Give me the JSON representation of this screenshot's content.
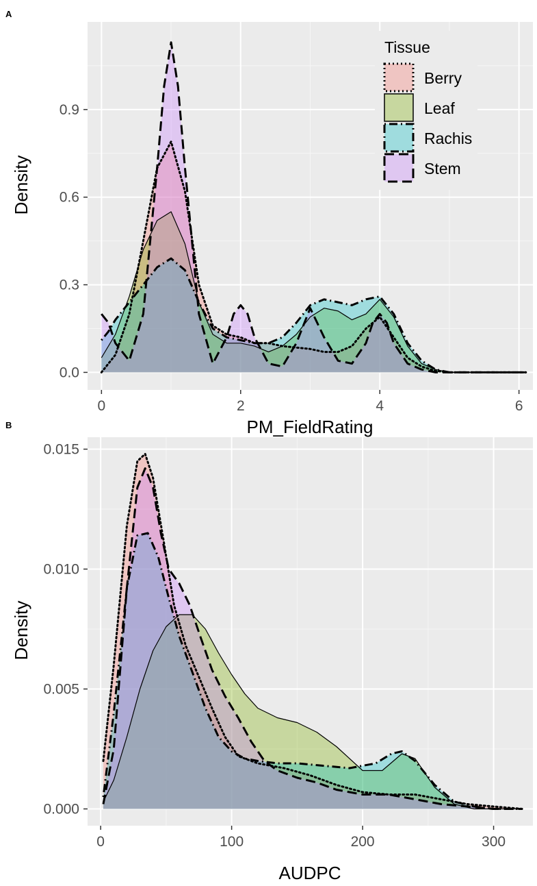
{
  "chart_data": [
    {
      "panel": "A",
      "type": "area",
      "xlabel": "PM_FieldRating",
      "ylabel": "Density",
      "xlim": [
        -0.2,
        6.2
      ],
      "ylim": [
        -0.06,
        1.2
      ],
      "xticks": [
        0,
        2,
        4,
        6
      ],
      "xtick_labels": [
        "0",
        "2",
        "4",
        "6"
      ],
      "yticks": [
        0,
        0.3,
        0.6,
        0.9
      ],
      "ytick_labels": [
        "0.0",
        "0.3",
        "0.6",
        "0.9"
      ],
      "grid": true,
      "legend": {
        "title": "Tissue",
        "position": "top-right",
        "entries": [
          "Berry",
          "Leaf",
          "Rachis",
          "Stem"
        ]
      },
      "series": [
        {
          "name": "Berry",
          "color": "#F8766D",
          "line": "dotted",
          "x": [
            0,
            0.2,
            0.4,
            0.6,
            0.8,
            1.0,
            1.2,
            1.4,
            1.6,
            1.8,
            2.0,
            2.2,
            2.4,
            2.6,
            2.8,
            3.0,
            3.2,
            3.4,
            3.6,
            3.8,
            4.0,
            4.2,
            4.4,
            4.6,
            4.8,
            5.0,
            5.5,
            6.0,
            6.1
          ],
          "y": [
            0.0,
            0.06,
            0.2,
            0.45,
            0.7,
            0.79,
            0.62,
            0.3,
            0.16,
            0.13,
            0.12,
            0.1,
            0.1,
            0.09,
            0.085,
            0.08,
            0.07,
            0.07,
            0.09,
            0.15,
            0.19,
            0.12,
            0.05,
            0.02,
            0.005,
            0.0,
            0.0,
            0.0,
            0.0
          ]
        },
        {
          "name": "Leaf",
          "color": "#7CAE00",
          "line": "solid",
          "x": [
            0,
            0.2,
            0.4,
            0.6,
            0.8,
            1.0,
            1.2,
            1.4,
            1.6,
            1.8,
            2.0,
            2.2,
            2.4,
            2.6,
            2.8,
            3.0,
            3.2,
            3.4,
            3.6,
            3.8,
            4.0,
            4.2,
            4.4,
            4.6,
            4.8,
            5.0,
            5.5,
            6.0,
            6.1
          ],
          "y": [
            0.05,
            0.13,
            0.26,
            0.42,
            0.52,
            0.55,
            0.44,
            0.24,
            0.13,
            0.1,
            0.1,
            0.09,
            0.07,
            0.09,
            0.13,
            0.19,
            0.22,
            0.21,
            0.18,
            0.2,
            0.25,
            0.19,
            0.09,
            0.03,
            0.01,
            0.0,
            0.0,
            0.0,
            0.0
          ]
        },
        {
          "name": "Rachis",
          "color": "#00BFC4",
          "line": "dotdash",
          "x": [
            0,
            0.1,
            0.2,
            0.4,
            0.6,
            0.8,
            1.0,
            1.2,
            1.4,
            1.6,
            1.8,
            2.0,
            2.2,
            2.4,
            2.6,
            2.8,
            3.0,
            3.2,
            3.4,
            3.6,
            3.8,
            4.0,
            4.2,
            4.4,
            4.6,
            4.8,
            5.0,
            5.5,
            6.0,
            6.1
          ],
          "y": [
            0.11,
            0.14,
            0.18,
            0.24,
            0.3,
            0.36,
            0.39,
            0.35,
            0.24,
            0.15,
            0.12,
            0.11,
            0.1,
            0.1,
            0.12,
            0.17,
            0.23,
            0.25,
            0.24,
            0.23,
            0.25,
            0.26,
            0.2,
            0.1,
            0.04,
            0.01,
            0.0,
            0.0,
            0.0,
            0.0
          ]
        },
        {
          "name": "Stem",
          "color": "#C77CFF",
          "line": "dashed",
          "x": [
            0,
            0.1,
            0.2,
            0.4,
            0.6,
            0.8,
            0.9,
            1.0,
            1.1,
            1.2,
            1.4,
            1.6,
            1.8,
            1.9,
            2.0,
            2.1,
            2.2,
            2.4,
            2.6,
            2.8,
            3.0,
            3.2,
            3.4,
            3.6,
            3.8,
            3.9,
            4.0,
            4.1,
            4.2,
            4.4,
            4.6,
            4.8,
            5.0,
            5.5,
            6.0,
            6.1
          ],
          "y": [
            0.2,
            0.17,
            0.1,
            0.04,
            0.2,
            0.7,
            0.98,
            1.13,
            0.98,
            0.7,
            0.2,
            0.03,
            0.12,
            0.2,
            0.23,
            0.2,
            0.12,
            0.03,
            0.02,
            0.1,
            0.22,
            0.12,
            0.04,
            0.03,
            0.1,
            0.17,
            0.2,
            0.17,
            0.1,
            0.03,
            0.01,
            0.0,
            0.0,
            0.0,
            0.0,
            0.0
          ]
        }
      ]
    },
    {
      "panel": "B",
      "type": "area",
      "xlabel": "AUDPC",
      "ylabel": "Density",
      "xlim": [
        -10,
        330
      ],
      "ylim": [
        -0.0007,
        0.0155
      ],
      "xticks": [
        0,
        100,
        200,
        300
      ],
      "xtick_labels": [
        "0",
        "100",
        "200",
        "300"
      ],
      "yticks": [
        0,
        0.005,
        0.01,
        0.015
      ],
      "ytick_labels": [
        "0.000",
        "0.005",
        "0.010",
        "0.015"
      ],
      "grid": true,
      "series": [
        {
          "name": "Berry",
          "color": "#F8766D",
          "line": "dotted",
          "x": [
            2,
            10,
            20,
            28,
            34,
            40,
            48,
            56,
            65,
            75,
            85,
            95,
            105,
            120,
            140,
            160,
            180,
            200,
            220,
            240,
            260,
            280,
            300,
            322
          ],
          "y": [
            0.002,
            0.006,
            0.0118,
            0.0145,
            0.0148,
            0.0138,
            0.0112,
            0.0085,
            0.0068,
            0.0055,
            0.0042,
            0.003,
            0.0022,
            0.0019,
            0.0017,
            0.0014,
            0.001,
            0.0007,
            0.0006,
            0.0006,
            0.0004,
            0.0002,
            0.0001,
            0.0
          ]
        },
        {
          "name": "Leaf",
          "color": "#7CAE00",
          "line": "solid",
          "x": [
            2,
            10,
            20,
            30,
            40,
            50,
            60,
            70,
            80,
            90,
            100,
            110,
            120,
            135,
            150,
            165,
            180,
            200,
            215,
            230,
            240,
            255,
            270,
            285,
            300,
            322
          ],
          "y": [
            0.0003,
            0.0012,
            0.003,
            0.005,
            0.0066,
            0.0076,
            0.0081,
            0.0081,
            0.0075,
            0.0065,
            0.0056,
            0.0048,
            0.0042,
            0.0038,
            0.0036,
            0.0032,
            0.0026,
            0.0016,
            0.0016,
            0.0023,
            0.0021,
            0.0009,
            0.0002,
            0.0,
            0.0,
            0.0
          ]
        },
        {
          "name": "Rachis",
          "color": "#00BFC4",
          "line": "dotdash",
          "x": [
            2,
            10,
            20,
            28,
            36,
            44,
            52,
            60,
            70,
            80,
            90,
            100,
            110,
            120,
            135,
            150,
            170,
            190,
            210,
            222,
            230,
            240,
            255,
            270,
            285,
            300,
            322
          ],
          "y": [
            0.0005,
            0.004,
            0.0092,
            0.0114,
            0.0115,
            0.0105,
            0.0088,
            0.0072,
            0.0057,
            0.0042,
            0.003,
            0.0024,
            0.0021,
            0.002,
            0.0019,
            0.0019,
            0.0018,
            0.0017,
            0.0019,
            0.0023,
            0.0024,
            0.002,
            0.001,
            0.0003,
            0.0001,
            0.0,
            0.0
          ]
        },
        {
          "name": "Stem",
          "color": "#C77CFF",
          "line": "dashed",
          "x": [
            2,
            10,
            20,
            28,
            34,
            40,
            46,
            52,
            60,
            68,
            76,
            85,
            95,
            105,
            115,
            125,
            135,
            150,
            165,
            180,
            200,
            220,
            240,
            260,
            280,
            300,
            322
          ],
          "y": [
            0.0002,
            0.0025,
            0.0092,
            0.0134,
            0.0142,
            0.0134,
            0.0115,
            0.01,
            0.0094,
            0.0085,
            0.0072,
            0.0058,
            0.0047,
            0.0038,
            0.0028,
            0.002,
            0.0016,
            0.0013,
            0.0011,
            0.0008,
            0.0006,
            0.0006,
            0.0004,
            0.0002,
            0.0001,
            0.0,
            0.0
          ]
        }
      ]
    }
  ]
}
